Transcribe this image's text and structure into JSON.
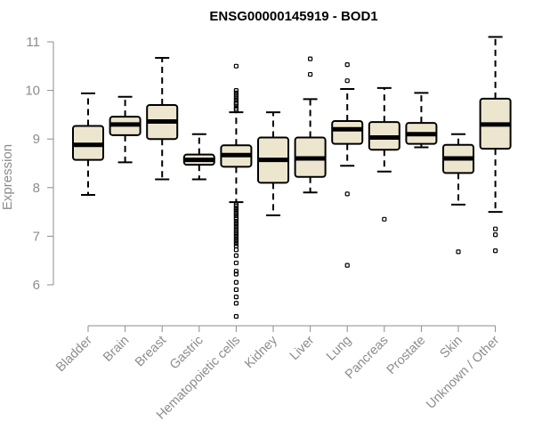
{
  "chart_data": {
    "type": "boxplot",
    "title": "ENSG00000145919 - BOD1",
    "xlabel": "",
    "ylabel": "Expression",
    "ylim": [
      5.2,
      11.2
    ],
    "yticks": [
      6,
      7,
      8,
      9,
      10,
      11
    ],
    "box_fill": "#ede6cf",
    "median_color": "#000000",
    "categories": [
      "Bladder",
      "Brain",
      "Breast",
      "Gastric",
      "Hematopoietic cells",
      "Kidney",
      "Liver",
      "Lung",
      "Pancreas",
      "Prostate",
      "Skin",
      "Unknown / Other"
    ],
    "boxes": [
      {
        "name": "Bladder",
        "whisker_low": 7.85,
        "q1": 8.57,
        "median": 8.88,
        "q3": 9.27,
        "whisker_high": 9.94,
        "outliers": []
      },
      {
        "name": "Brain",
        "whisker_low": 8.52,
        "q1": 9.08,
        "median": 9.3,
        "q3": 9.46,
        "whisker_high": 9.87,
        "outliers": []
      },
      {
        "name": "Breast",
        "whisker_low": 8.17,
        "q1": 9.0,
        "median": 9.36,
        "q3": 9.7,
        "whisker_high": 10.67,
        "outliers": []
      },
      {
        "name": "Gastric",
        "whisker_low": 8.17,
        "q1": 8.47,
        "median": 8.57,
        "q3": 8.68,
        "whisker_high": 9.1,
        "outliers": []
      },
      {
        "name": "Hematopoietic cells",
        "whisker_low": 7.7,
        "q1": 8.43,
        "median": 8.67,
        "q3": 8.87,
        "whisker_high": 9.55,
        "outliers": [
          10.5,
          10.0,
          9.95,
          9.9,
          9.85,
          9.8,
          9.75,
          9.72,
          9.68,
          9.63,
          9.6,
          7.65,
          7.62,
          7.58,
          7.55,
          7.52,
          7.48,
          7.45,
          7.42,
          7.38,
          7.35,
          7.3,
          7.25,
          7.2,
          7.15,
          7.1,
          7.05,
          7.0,
          6.95,
          6.9,
          6.85,
          6.8,
          6.72,
          6.6,
          6.45,
          6.28,
          6.22,
          6.05,
          5.9,
          5.75,
          5.62,
          5.35
        ]
      },
      {
        "name": "Kidney",
        "whisker_low": 7.43,
        "q1": 8.1,
        "median": 8.57,
        "q3": 9.03,
        "whisker_high": 9.55,
        "outliers": []
      },
      {
        "name": "Liver",
        "whisker_low": 7.9,
        "q1": 8.22,
        "median": 8.6,
        "q3": 9.03,
        "whisker_high": 9.82,
        "outliers": [
          10.65,
          10.33
        ]
      },
      {
        "name": "Lung",
        "whisker_low": 8.45,
        "q1": 8.9,
        "median": 9.2,
        "q3": 9.37,
        "whisker_high": 10.03,
        "outliers": [
          10.53,
          10.2,
          7.87,
          6.4
        ]
      },
      {
        "name": "Pancreas",
        "whisker_low": 8.33,
        "q1": 8.78,
        "median": 9.03,
        "q3": 9.35,
        "whisker_high": 10.05,
        "outliers": [
          7.35
        ]
      },
      {
        "name": "Prostate",
        "whisker_low": 8.83,
        "q1": 8.9,
        "median": 9.1,
        "q3": 9.33,
        "whisker_high": 9.95,
        "outliers": []
      },
      {
        "name": "Skin",
        "whisker_low": 7.65,
        "q1": 8.3,
        "median": 8.6,
        "q3": 8.88,
        "whisker_high": 9.1,
        "outliers": [
          6.68
        ]
      },
      {
        "name": "Unknown / Other",
        "whisker_low": 7.5,
        "q1": 8.8,
        "median": 9.3,
        "q3": 9.83,
        "whisker_high": 11.1,
        "outliers": [
          7.15,
          7.03,
          6.7
        ]
      }
    ]
  }
}
